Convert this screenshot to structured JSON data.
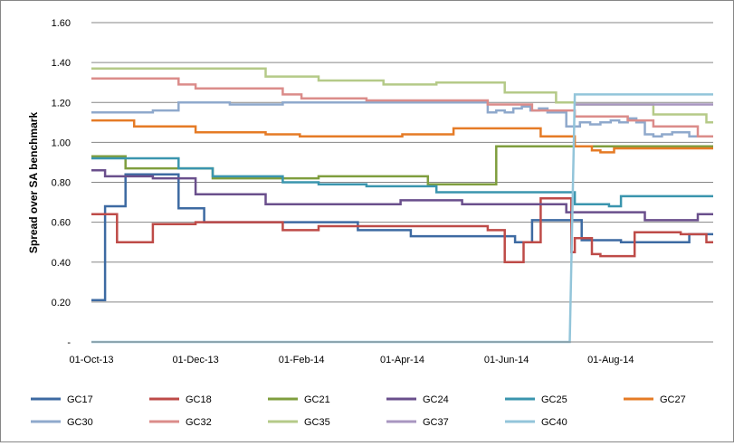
{
  "chart_data": {
    "type": "line",
    "title": "",
    "xlabel": "",
    "ylabel": "Spread over SA benchmark",
    "ylim": [
      0,
      1.6
    ],
    "yticks": [
      0,
      0.2,
      0.4,
      0.6,
      0.8,
      1.0,
      1.2,
      1.4,
      1.6
    ],
    "ytick_labels": [
      "-",
      "0.20",
      "0.40",
      "0.60",
      "0.80",
      "1.00",
      "1.20",
      "1.40",
      "1.60"
    ],
    "x_range": [
      "2013-10-01",
      "2014-09-30"
    ],
    "xticks": [
      "2013-10-01",
      "2013-12-01",
      "2014-02-01",
      "2014-04-01",
      "2014-06-01",
      "2014-08-01"
    ],
    "xtick_labels": [
      "01-Oct-13",
      "01-Dec-13",
      "01-Feb-14",
      "01-Apr-14",
      "01-Jun-14",
      "01-Aug-14"
    ],
    "grid": "horizontal",
    "legend": "bottom",
    "series": [
      {
        "name": "GC17",
        "color": "#3D6AA2",
        "points": [
          [
            "2013-10-01",
            0.21
          ],
          [
            "2013-10-09",
            0.21
          ],
          [
            "2013-10-09",
            0.68
          ],
          [
            "2013-10-21",
            0.68
          ],
          [
            "2013-10-21",
            0.84
          ],
          [
            "2013-11-21",
            0.84
          ],
          [
            "2013-11-21",
            0.67
          ],
          [
            "2013-12-06",
            0.67
          ],
          [
            "2013-12-06",
            0.6
          ],
          [
            "2014-03-06",
            0.6
          ],
          [
            "2014-03-06",
            0.56
          ],
          [
            "2014-04-06",
            0.56
          ],
          [
            "2014-04-06",
            0.53
          ],
          [
            "2014-06-06",
            0.53
          ],
          [
            "2014-06-06",
            0.5
          ],
          [
            "2014-06-16",
            0.5
          ],
          [
            "2014-06-16",
            0.61
          ],
          [
            "2014-07-15",
            0.61
          ],
          [
            "2014-07-15",
            0.51
          ],
          [
            "2014-08-07",
            0.51
          ],
          [
            "2014-08-07",
            0.5
          ],
          [
            "2014-09-16",
            0.5
          ],
          [
            "2014-09-16",
            0.54
          ],
          [
            "2014-09-30",
            0.54
          ]
        ]
      },
      {
        "name": "GC18",
        "color": "#BE4B48",
        "points": [
          [
            "2013-10-01",
            0.64
          ],
          [
            "2013-10-16",
            0.64
          ],
          [
            "2013-10-16",
            0.5
          ],
          [
            "2013-11-06",
            0.5
          ],
          [
            "2013-11-06",
            0.59
          ],
          [
            "2013-12-01",
            0.59
          ],
          [
            "2013-12-01",
            0.6
          ],
          [
            "2014-01-21",
            0.6
          ],
          [
            "2014-01-21",
            0.56
          ],
          [
            "2014-02-11",
            0.56
          ],
          [
            "2014-02-11",
            0.58
          ],
          [
            "2014-05-21",
            0.58
          ],
          [
            "2014-05-21",
            0.56
          ],
          [
            "2014-05-31",
            0.56
          ],
          [
            "2014-05-31",
            0.4
          ],
          [
            "2014-06-11",
            0.4
          ],
          [
            "2014-06-11",
            0.5
          ],
          [
            "2014-06-21",
            0.5
          ],
          [
            "2014-06-21",
            0.72
          ],
          [
            "2014-07-09",
            0.72
          ],
          [
            "2014-07-09",
            0.45
          ],
          [
            "2014-07-11",
            0.45
          ],
          [
            "2014-07-11",
            0.52
          ],
          [
            "2014-07-21",
            0.52
          ],
          [
            "2014-07-21",
            0.44
          ],
          [
            "2014-07-26",
            0.44
          ],
          [
            "2014-07-26",
            0.43
          ],
          [
            "2014-08-15",
            0.43
          ],
          [
            "2014-08-15",
            0.55
          ],
          [
            "2014-09-11",
            0.55
          ],
          [
            "2014-09-11",
            0.54
          ],
          [
            "2014-09-26",
            0.54
          ],
          [
            "2014-09-26",
            0.5
          ],
          [
            "2014-09-30",
            0.5
          ]
        ]
      },
      {
        "name": "GC21",
        "color": "#7F9E3E",
        "points": [
          [
            "2013-10-01",
            0.93
          ],
          [
            "2013-10-21",
            0.93
          ],
          [
            "2013-10-21",
            0.87
          ],
          [
            "2013-11-21",
            0.87
          ],
          [
            "2013-11-21",
            0.87
          ],
          [
            "2013-12-11",
            0.87
          ],
          [
            "2013-12-11",
            0.82
          ],
          [
            "2014-02-11",
            0.82
          ],
          [
            "2014-02-11",
            0.83
          ],
          [
            "2014-04-16",
            0.83
          ],
          [
            "2014-04-16",
            0.79
          ],
          [
            "2014-05-26",
            0.79
          ],
          [
            "2014-05-26",
            0.98
          ],
          [
            "2014-09-30",
            0.98
          ]
        ]
      },
      {
        "name": "GC24",
        "color": "#6A4F8C",
        "points": [
          [
            "2013-10-01",
            0.86
          ],
          [
            "2013-10-09",
            0.86
          ],
          [
            "2013-10-09",
            0.83
          ],
          [
            "2013-11-06",
            0.83
          ],
          [
            "2013-11-06",
            0.82
          ],
          [
            "2013-12-01",
            0.82
          ],
          [
            "2013-12-01",
            0.74
          ],
          [
            "2014-01-11",
            0.74
          ],
          [
            "2014-01-11",
            0.69
          ],
          [
            "2014-03-31",
            0.69
          ],
          [
            "2014-03-31",
            0.71
          ],
          [
            "2014-05-06",
            0.71
          ],
          [
            "2014-05-06",
            0.69
          ],
          [
            "2014-07-06",
            0.69
          ],
          [
            "2014-07-06",
            0.65
          ],
          [
            "2014-08-21",
            0.65
          ],
          [
            "2014-08-21",
            0.61
          ],
          [
            "2014-09-21",
            0.61
          ],
          [
            "2014-09-21",
            0.64
          ],
          [
            "2014-09-30",
            0.64
          ]
        ]
      },
      {
        "name": "GC25",
        "color": "#3A95AE",
        "points": [
          [
            "2013-10-01",
            0.92
          ],
          [
            "2013-11-21",
            0.92
          ],
          [
            "2013-11-21",
            0.87
          ],
          [
            "2013-12-11",
            0.87
          ],
          [
            "2013-12-11",
            0.83
          ],
          [
            "2014-01-21",
            0.83
          ],
          [
            "2014-01-21",
            0.8
          ],
          [
            "2014-02-11",
            0.8
          ],
          [
            "2014-02-11",
            0.79
          ],
          [
            "2014-03-11",
            0.79
          ],
          [
            "2014-03-11",
            0.78
          ],
          [
            "2014-04-21",
            0.78
          ],
          [
            "2014-04-21",
            0.75
          ],
          [
            "2014-07-11",
            0.75
          ],
          [
            "2014-07-11",
            0.69
          ],
          [
            "2014-07-31",
            0.69
          ],
          [
            "2014-07-31",
            0.68
          ],
          [
            "2014-08-07",
            0.68
          ],
          [
            "2014-08-07",
            0.73
          ],
          [
            "2014-09-30",
            0.73
          ]
        ]
      },
      {
        "name": "GC27",
        "color": "#E57B26",
        "points": [
          [
            "2013-10-01",
            1.11
          ],
          [
            "2013-10-26",
            1.11
          ],
          [
            "2013-10-26",
            1.08
          ],
          [
            "2013-12-01",
            1.08
          ],
          [
            "2013-12-01",
            1.05
          ],
          [
            "2014-01-11",
            1.05
          ],
          [
            "2014-01-11",
            1.04
          ],
          [
            "2014-01-31",
            1.04
          ],
          [
            "2014-01-31",
            1.03
          ],
          [
            "2014-04-01",
            1.03
          ],
          [
            "2014-04-01",
            1.04
          ],
          [
            "2014-05-01",
            1.04
          ],
          [
            "2014-05-01",
            1.07
          ],
          [
            "2014-06-21",
            1.07
          ],
          [
            "2014-06-21",
            1.03
          ],
          [
            "2014-07-11",
            1.03
          ],
          [
            "2014-07-11",
            0.98
          ],
          [
            "2014-07-21",
            0.98
          ],
          [
            "2014-07-21",
            0.96
          ],
          [
            "2014-07-26",
            0.96
          ],
          [
            "2014-07-26",
            0.95
          ],
          [
            "2014-08-03",
            0.95
          ],
          [
            "2014-08-03",
            0.97
          ],
          [
            "2014-09-30",
            0.97
          ]
        ]
      },
      {
        "name": "GC30",
        "color": "#8FA9CC",
        "points": [
          [
            "2013-10-01",
            1.15
          ],
          [
            "2013-11-06",
            1.15
          ],
          [
            "2013-11-06",
            1.16
          ],
          [
            "2013-11-21",
            1.16
          ],
          [
            "2013-11-21",
            1.2
          ],
          [
            "2013-12-21",
            1.2
          ],
          [
            "2013-12-21",
            1.19
          ],
          [
            "2014-01-21",
            1.19
          ],
          [
            "2014-01-21",
            1.2
          ],
          [
            "2014-05-21",
            1.2
          ],
          [
            "2014-05-21",
            1.15
          ],
          [
            "2014-05-26",
            1.15
          ],
          [
            "2014-05-26",
            1.16
          ],
          [
            "2014-05-31",
            1.16
          ],
          [
            "2014-05-31",
            1.15
          ],
          [
            "2014-06-05",
            1.15
          ],
          [
            "2014-06-05",
            1.17
          ],
          [
            "2014-06-10",
            1.17
          ],
          [
            "2014-06-10",
            1.18
          ],
          [
            "2014-06-15",
            1.18
          ],
          [
            "2014-06-15",
            1.16
          ],
          [
            "2014-06-20",
            1.16
          ],
          [
            "2014-06-20",
            1.17
          ],
          [
            "2014-06-25",
            1.17
          ],
          [
            "2014-06-25",
            1.15
          ],
          [
            "2014-07-06",
            1.15
          ],
          [
            "2014-07-06",
            1.08
          ],
          [
            "2014-07-14",
            1.08
          ],
          [
            "2014-07-14",
            1.1
          ],
          [
            "2014-07-20",
            1.1
          ],
          [
            "2014-07-20",
            1.09
          ],
          [
            "2014-07-26",
            1.09
          ],
          [
            "2014-07-26",
            1.1
          ],
          [
            "2014-08-01",
            1.1
          ],
          [
            "2014-08-01",
            1.11
          ],
          [
            "2014-08-06",
            1.11
          ],
          [
            "2014-08-06",
            1.1
          ],
          [
            "2014-08-11",
            1.1
          ],
          [
            "2014-08-11",
            1.12
          ],
          [
            "2014-08-16",
            1.12
          ],
          [
            "2014-08-16",
            1.1
          ],
          [
            "2014-08-21",
            1.1
          ],
          [
            "2014-08-21",
            1.04
          ],
          [
            "2014-08-26",
            1.04
          ],
          [
            "2014-08-26",
            1.03
          ],
          [
            "2014-08-31",
            1.03
          ],
          [
            "2014-08-31",
            1.04
          ],
          [
            "2014-09-06",
            1.04
          ],
          [
            "2014-09-06",
            1.05
          ],
          [
            "2014-09-16",
            1.05
          ],
          [
            "2014-09-16",
            1.03
          ],
          [
            "2014-09-30",
            1.03
          ]
        ]
      },
      {
        "name": "GC32",
        "color": "#DB8C8A",
        "points": [
          [
            "2013-10-01",
            1.32
          ],
          [
            "2013-11-21",
            1.32
          ],
          [
            "2013-11-21",
            1.29
          ],
          [
            "2013-12-01",
            1.29
          ],
          [
            "2013-12-01",
            1.27
          ],
          [
            "2014-01-21",
            1.27
          ],
          [
            "2014-01-21",
            1.24
          ],
          [
            "2014-02-01",
            1.24
          ],
          [
            "2014-02-01",
            1.22
          ],
          [
            "2014-03-11",
            1.22
          ],
          [
            "2014-03-11",
            1.21
          ],
          [
            "2014-05-21",
            1.21
          ],
          [
            "2014-05-21",
            1.19
          ],
          [
            "2014-06-16",
            1.19
          ],
          [
            "2014-06-16",
            1.16
          ],
          [
            "2014-07-11",
            1.16
          ],
          [
            "2014-07-11",
            1.13
          ],
          [
            "2014-08-11",
            1.13
          ],
          [
            "2014-08-11",
            1.11
          ],
          [
            "2014-08-26",
            1.11
          ],
          [
            "2014-08-26",
            1.08
          ],
          [
            "2014-09-21",
            1.08
          ],
          [
            "2014-09-21",
            1.03
          ],
          [
            "2014-09-30",
            1.03
          ]
        ]
      },
      {
        "name": "GC35",
        "color": "#B5CA88",
        "points": [
          [
            "2013-10-01",
            1.37
          ],
          [
            "2014-01-11",
            1.37
          ],
          [
            "2014-01-11",
            1.33
          ],
          [
            "2014-02-11",
            1.33
          ],
          [
            "2014-02-11",
            1.31
          ],
          [
            "2014-03-21",
            1.31
          ],
          [
            "2014-03-21",
            1.29
          ],
          [
            "2014-04-21",
            1.29
          ],
          [
            "2014-04-21",
            1.3
          ],
          [
            "2014-05-31",
            1.3
          ],
          [
            "2014-05-31",
            1.25
          ],
          [
            "2014-06-30",
            1.25
          ],
          [
            "2014-06-30",
            1.2
          ],
          [
            "2014-07-11",
            1.2
          ],
          [
            "2014-07-11",
            1.19
          ],
          [
            "2014-08-26",
            1.19
          ],
          [
            "2014-08-26",
            1.14
          ],
          [
            "2014-09-26",
            1.14
          ],
          [
            "2014-09-26",
            1.1
          ],
          [
            "2014-09-30",
            1.1
          ]
        ]
      },
      {
        "name": "GC37",
        "color": "#A896C0",
        "points": [
          [
            "2014-07-11",
            1.19
          ],
          [
            "2014-09-30",
            1.19
          ]
        ]
      },
      {
        "name": "GC40",
        "color": "#93C5DA",
        "points": [
          [
            "2013-10-01",
            0.0
          ],
          [
            "2014-07-08",
            0.0
          ],
          [
            "2014-07-11",
            1.24
          ],
          [
            "2014-09-30",
            1.24
          ]
        ]
      }
    ]
  }
}
